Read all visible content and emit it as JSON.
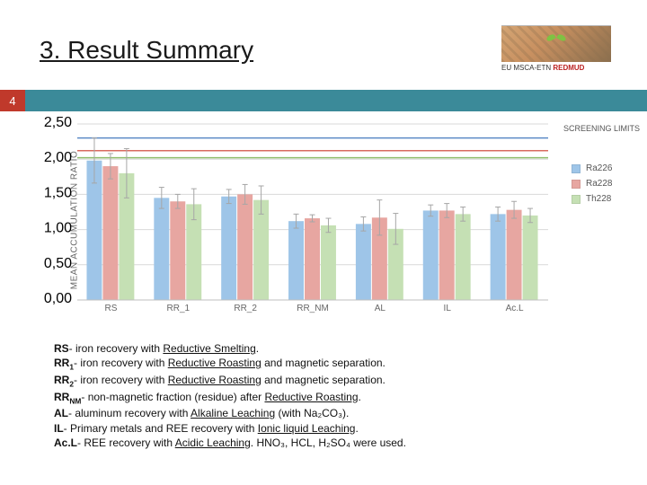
{
  "title": "3. Result Summary",
  "badge": "4",
  "logo": {
    "text_prefix": "EU MSCA-ETN ",
    "text_bold": "REDMUD"
  },
  "chart": {
    "type": "bar-with-error",
    "ylabel": "MEAN ACCUMULATION RATIO",
    "ylim": [
      0,
      2.5
    ],
    "ytick_step": 0.5,
    "yticks": [
      "0,00",
      "0,50",
      "1,00",
      "1,50",
      "2,00",
      "2,50"
    ],
    "categories": [
      "RS",
      "RR_1",
      "RR_2",
      "RR_NM",
      "AL",
      "IL",
      "Ac.L"
    ],
    "series_colors": {
      "Ra226": "#9ec5e8",
      "Ra228": "#e7a6a1",
      "Th228": "#c5e0b4"
    },
    "error_color": "#a6a6a6",
    "ref_colors": {
      "Ra226": "#5b8ac6",
      "Ra228": "#d86b5f",
      "Th228": "#8fbd6b"
    },
    "background_color": "#ffffff",
    "grid_color": "#d9d9d9",
    "bar_width": 0.24,
    "group_gap": 0.28,
    "screening_label": "SCREENING\nLIMITS",
    "legend": [
      {
        "key": "Ra226",
        "label": "Ra226"
      },
      {
        "key": "Ra228",
        "label": "Ra228"
      },
      {
        "key": "Th228",
        "label": "Th228"
      }
    ],
    "ref_lines": {
      "Ra226": 2.3,
      "Ra228": 2.12,
      "Th228": 2.02
    },
    "data": {
      "Ra226": {
        "values": [
          1.98,
          1.45,
          1.47,
          1.12,
          1.08,
          1.27,
          1.22
        ],
        "err": [
          0.32,
          0.15,
          0.1,
          0.1,
          0.1,
          0.08,
          0.1
        ]
      },
      "Ra228": {
        "values": [
          1.9,
          1.4,
          1.5,
          1.16,
          1.17,
          1.27,
          1.28
        ],
        "err": [
          0.18,
          0.1,
          0.14,
          0.05,
          0.25,
          0.1,
          0.12
        ]
      },
      "Th228": {
        "values": [
          1.8,
          1.36,
          1.42,
          1.06,
          1.01,
          1.22,
          1.2
        ],
        "err": [
          0.35,
          0.22,
          0.2,
          0.1,
          0.22,
          0.1,
          0.1
        ]
      }
    }
  },
  "key_lines": [
    {
      "abbr": "RS",
      "sub": "",
      "text": "- iron recovery with ",
      "u": "Reductive Smelting",
      "tail": "."
    },
    {
      "abbr": "RR",
      "sub": "1",
      "text": "- iron recovery with ",
      "u": "Reductive Roasting",
      "tail": " and magnetic separation."
    },
    {
      "abbr": "RR",
      "sub": "2",
      "text": "- iron recovery with ",
      "u": "Reductive Roasting",
      "tail": " and magnetic separation."
    },
    {
      "abbr": "RR",
      "sub": "NM",
      "text": "- non-magnetic fraction (residue) after ",
      "u": "Reductive Roasting",
      "tail": "."
    },
    {
      "abbr": "AL",
      "sub": "",
      "text": "- aluminum recovery with ",
      "u": "Alkaline Leaching",
      "tail": " (with Na₂CO₃)."
    },
    {
      "abbr": "IL",
      "sub": "",
      "text": "- Primary metals and REE recovery with ",
      "u": "Ionic liquid Leaching",
      "tail": "."
    },
    {
      "abbr": "Ac.L",
      "sub": "",
      "text": "- REE recovery with ",
      "u": "Acidic Leaching",
      "tail": ". HNO₃, HCL, H₂SO₄ were used."
    }
  ]
}
